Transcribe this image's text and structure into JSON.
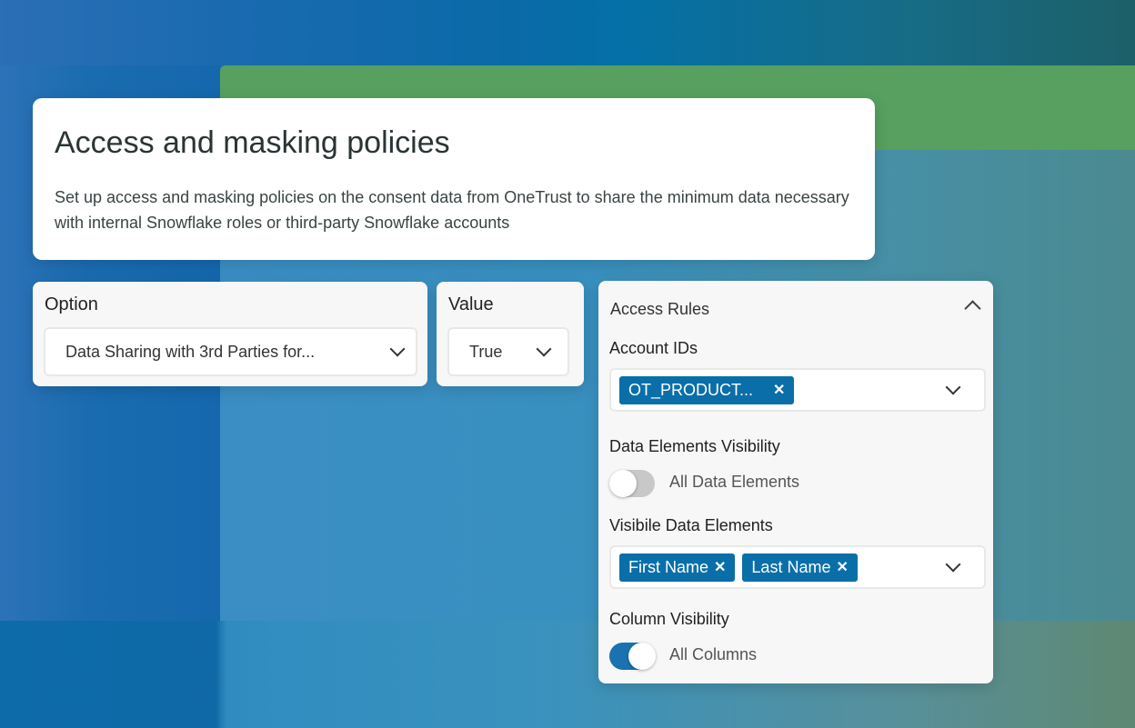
{
  "header": {
    "title": "Access and masking policies",
    "description": "Set up access and masking policies on the consent data from OneTrust to share the minimum data necessary with internal Snowflake roles or third-party Snowflake accounts"
  },
  "option": {
    "label": "Option",
    "value": "Data Sharing with 3rd Parties for..."
  },
  "value": {
    "label": "Value",
    "value": "True"
  },
  "access_rules": {
    "title": "Access Rules",
    "account_ids": {
      "label": "Account IDs",
      "tags": [
        "OT_PRODUCT..."
      ]
    },
    "data_elements_visibility": {
      "label": "Data Elements Visibility",
      "toggle_label": "All Data Elements",
      "on": false
    },
    "visible_data_elements": {
      "label": "Visibile Data Elements",
      "tags": [
        "First Name",
        "Last Name"
      ]
    },
    "column_visibility": {
      "label": "Column Visibility",
      "toggle_label": "All Columns",
      "on": true
    }
  },
  "colors": {
    "accent": "#0a6fa8",
    "green": "#57a05f"
  }
}
